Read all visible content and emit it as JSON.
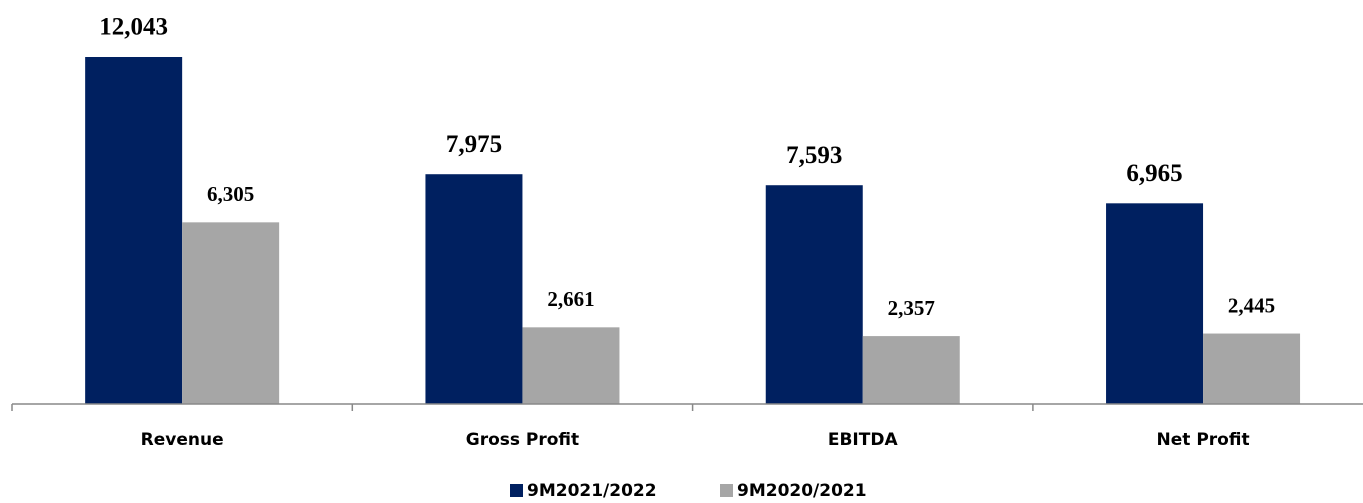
{
  "chart_data": {
    "type": "bar",
    "categories": [
      "Revenue",
      "Gross Profit",
      "EBITDA",
      "Net Profit"
    ],
    "series": [
      {
        "name": "9M2021/2022",
        "color": "#002060",
        "values": [
          12043,
          7975,
          7593,
          6965
        ],
        "value_labels": [
          "12,043",
          "7,975",
          "7,593",
          "6,965"
        ]
      },
      {
        "name": "9M2020/2021",
        "color": "#a6a6a6",
        "values": [
          6305,
          2661,
          2357,
          2445
        ],
        "value_labels": [
          "6,305",
          "2,661",
          "2,357",
          "2,445"
        ]
      }
    ]
  }
}
